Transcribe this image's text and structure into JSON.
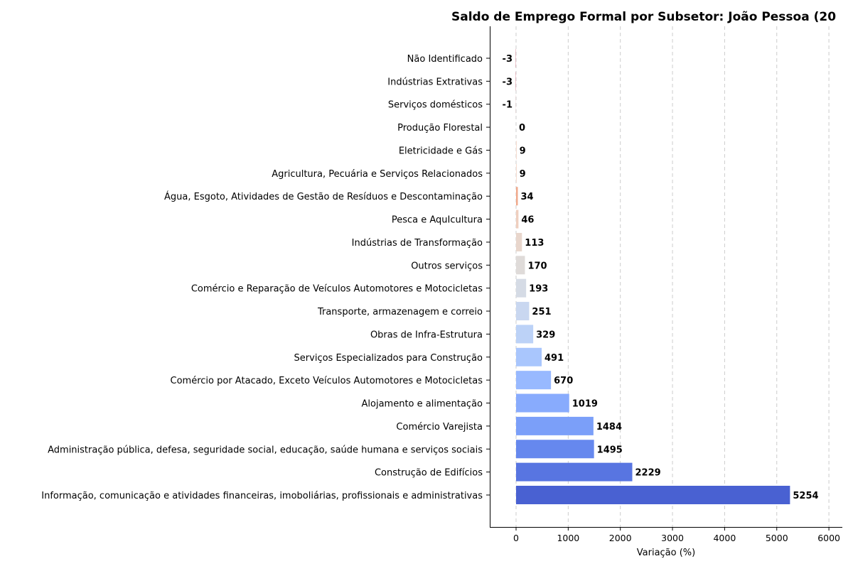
{
  "chart_data": {
    "type": "bar",
    "orientation": "horizontal",
    "title": "Saldo de Emprego Formal por Subsetor: João Pessoa (20",
    "xlabel": "Variação (%)",
    "ylabel": "",
    "xlim": [
      -500,
      6250
    ],
    "xticks": [
      0,
      1000,
      2000,
      3000,
      4000,
      5000,
      6000
    ],
    "grid": "x-dashed",
    "categories": [
      "Não Identificado",
      "Indústrias Extrativas",
      "Serviços domésticos",
      "Produção Florestal",
      "Eletricidade e Gás",
      "Agricultura, Pecuária e Serviços Relacionados",
      "Água, Esgoto, Atividades de Gestão de Resíduos e Descontaminação",
      "Pesca e AquIcultura",
      "Indústrias de Transformação",
      "Outros serviços",
      "Comércio e Reparação de Veículos Automotores e Motocicletas",
      "Transporte, armazenagem e correio",
      "Obras de Infra-Estrutura",
      "Serviços Especializados para Construção",
      "Comércio por Atacado, Exceto Veículos Automotores e Motocicletas",
      "Alojamento e alimentação",
      "Comércio Varejista",
      "Administração pública, defesa, seguridade social, educação, saúde humana e serviços sociais",
      "Construção de Edifícios",
      "Informação, comunicação e atividades financeiras, imoboliárias, profissionais e administrativas"
    ],
    "values": [
      -3,
      -3,
      -1,
      0,
      9,
      9,
      34,
      46,
      113,
      170,
      193,
      251,
      329,
      491,
      670,
      1019,
      1484,
      1495,
      2229,
      5254
    ],
    "colors": [
      "#b40426",
      "#b40426",
      "#c32e31",
      "#f5c2aa",
      "#f2cbb7",
      "#f2cbb7",
      "#f0a98c",
      "#efcfbf",
      "#e8d6cc",
      "#dfdbd9",
      "#d5dbe5",
      "#c9d7f0",
      "#bcd2f7",
      "#a9c6fd",
      "#98b9ff",
      "#88abfd",
      "#7b9ff9",
      "#6688ee",
      "#5875e1",
      "#4961d2"
    ]
  }
}
